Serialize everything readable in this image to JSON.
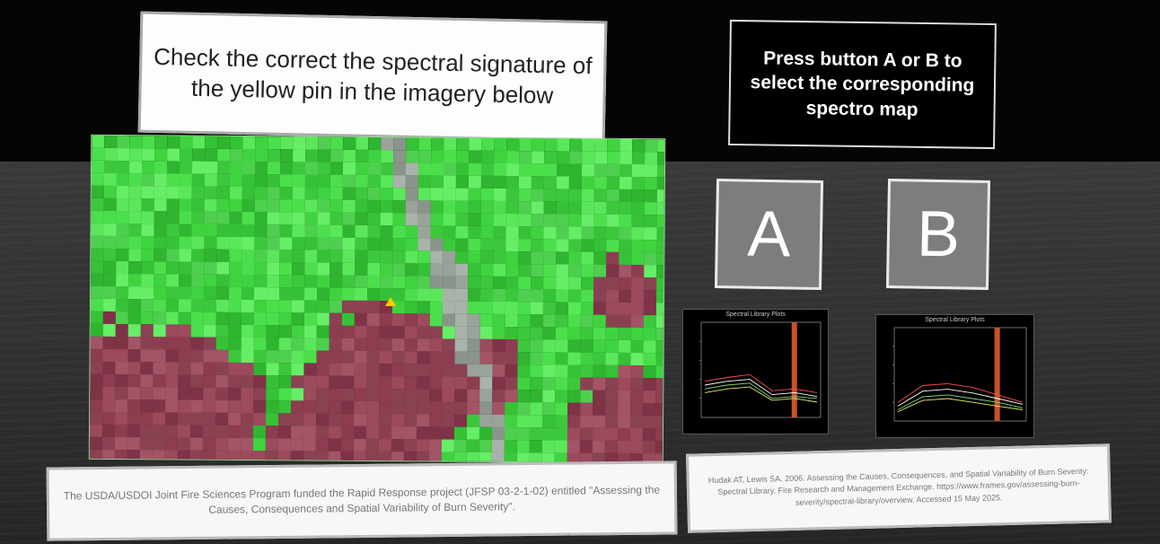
{
  "instruction": {
    "text": "Check  the correct the spectral signature of the yellow pin in the imagery below"
  },
  "press_panel": {
    "text": "Press button A or B to select the corresponding spectro map"
  },
  "buttons": {
    "a_label": "A",
    "b_label": "B"
  },
  "plots": {
    "a_title": "Spectral Library Plots",
    "b_title": "Spectral Library Plots"
  },
  "captions": {
    "left": "The USDA/USDOI Joint Fire Sciences Program funded the Rapid Response project (JFSP 03-2-1-02) entitled \"Assessing the Causes, Consequences and Spatial Variability of Burn Severity\".",
    "right": "Hudak AT, Lewis SA. 2006. Assessing the Causes, Consequences, and Spatial Variability of Burn Severity: Spectral Library. Fire Research and Management Exchange. https://www.frames.gov/assessing-burn-severity/spectral-library/overview. Accessed 15 May 2025."
  },
  "colors": {
    "vegetation": "#3fd43f",
    "burn_scar": "#8e3c50",
    "pin": "#ffcc00"
  }
}
